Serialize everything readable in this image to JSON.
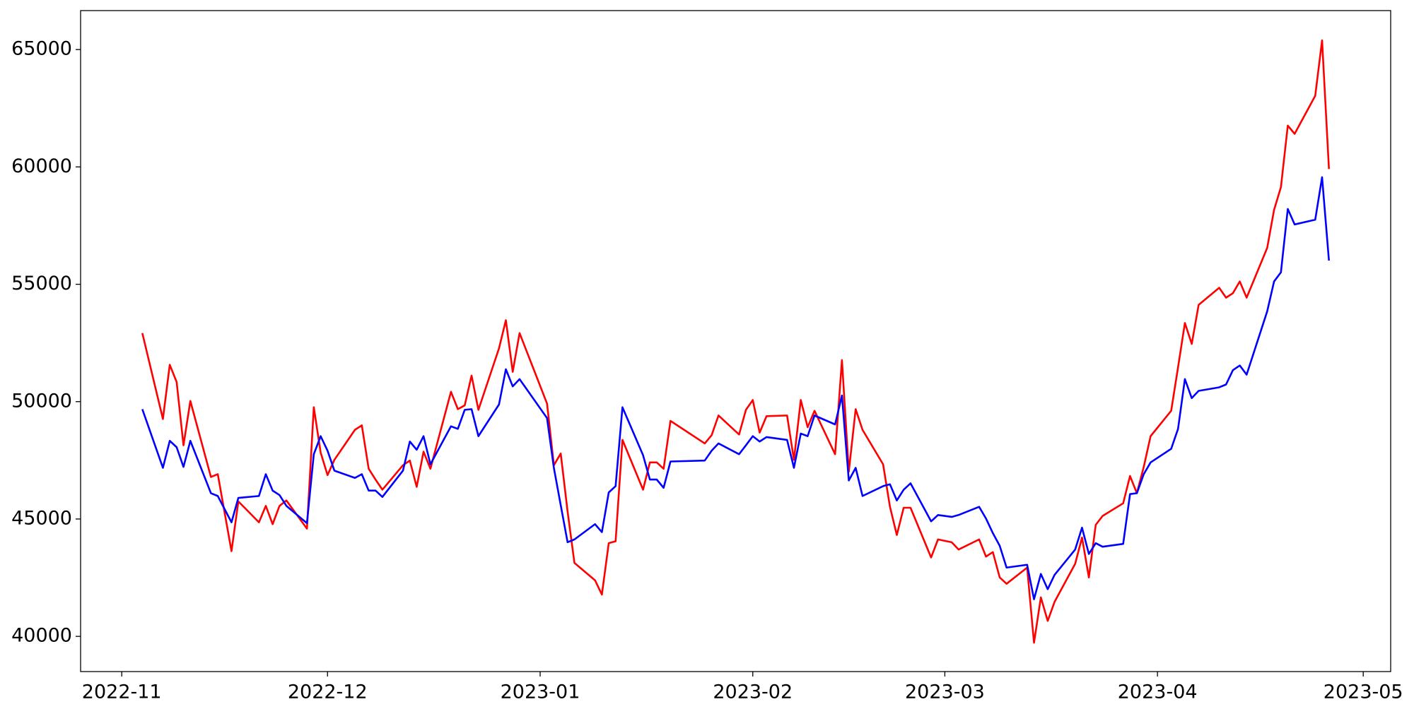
{
  "chart_data": {
    "type": "line",
    "x": [
      "2022-11-04",
      "2022-11-07",
      "2022-11-08",
      "2022-11-09",
      "2022-11-10",
      "2022-11-11",
      "2022-11-14",
      "2022-11-15",
      "2022-11-17",
      "2022-11-18",
      "2022-11-21",
      "2022-11-22",
      "2022-11-23",
      "2022-11-24",
      "2022-11-25",
      "2022-11-28",
      "2022-11-29",
      "2022-11-30",
      "2022-12-01",
      "2022-12-02",
      "2022-12-05",
      "2022-12-06",
      "2022-12-07",
      "2022-12-08",
      "2022-12-09",
      "2022-12-12",
      "2022-12-13",
      "2022-12-14",
      "2022-12-15",
      "2022-12-16",
      "2022-12-19",
      "2022-12-20",
      "2022-12-21",
      "2022-12-22",
      "2022-12-23",
      "2022-12-26",
      "2022-12-27",
      "2022-12-28",
      "2022-12-29",
      "2023-01-02",
      "2023-01-03",
      "2023-01-04",
      "2023-01-05",
      "2023-01-06",
      "2023-01-09",
      "2023-01-10",
      "2023-01-11",
      "2023-01-12",
      "2023-01-13",
      "2023-01-16",
      "2023-01-17",
      "2023-01-18",
      "2023-01-19",
      "2023-01-20",
      "2023-01-25",
      "2023-01-26",
      "2023-01-27",
      "2023-01-30",
      "2023-01-31",
      "2023-02-01",
      "2023-02-02",
      "2023-02-03",
      "2023-02-06",
      "2023-02-07",
      "2023-02-08",
      "2023-02-09",
      "2023-02-10",
      "2023-02-13",
      "2023-02-14",
      "2023-02-15",
      "2023-02-16",
      "2023-02-17",
      "2023-02-20",
      "2023-02-21",
      "2023-02-22",
      "2023-02-23",
      "2023-02-24",
      "2023-02-27",
      "2023-02-28",
      "2023-03-02",
      "2023-03-03",
      "2023-03-06",
      "2023-03-07",
      "2023-03-08",
      "2023-03-09",
      "2023-03-10",
      "2023-03-13",
      "2023-03-14",
      "2023-03-15",
      "2023-03-16",
      "2023-03-17",
      "2023-03-20",
      "2023-03-21",
      "2023-03-22",
      "2023-03-23",
      "2023-03-24",
      "2023-03-27",
      "2023-03-28",
      "2023-03-29",
      "2023-03-30",
      "2023-03-31",
      "2023-04-03",
      "2023-04-04",
      "2023-04-05",
      "2023-04-06",
      "2023-04-07",
      "2023-04-10",
      "2023-04-11",
      "2023-04-12",
      "2023-04-13",
      "2023-04-14",
      "2023-04-17",
      "2023-04-18",
      "2023-04-19",
      "2023-04-20",
      "2023-04-21",
      "2023-04-24",
      "2023-04-25",
      "2023-04-26"
    ],
    "series": [
      {
        "color": "#ff0000",
        "values": [
          52920,
          49260,
          51570,
          50840,
          48140,
          50030,
          46790,
          46910,
          43630,
          45750,
          44860,
          45560,
          44780,
          45560,
          45790,
          44590,
          49760,
          47830,
          46870,
          47520,
          48800,
          48990,
          47140,
          46680,
          46250,
          47290,
          47490,
          46370,
          47870,
          47140,
          50420,
          49680,
          49840,
          51110,
          49650,
          52270,
          53470,
          51270,
          52920,
          49920,
          47290,
          47790,
          45320,
          43130,
          42390,
          41780,
          43970,
          44050,
          48370,
          46250,
          47410,
          47410,
          47140,
          49180,
          48220,
          48570,
          49410,
          48600,
          49650,
          50070,
          48680,
          49380,
          49410,
          47520,
          50070,
          48910,
          49610,
          47760,
          51770,
          47020,
          49680,
          48800,
          47330,
          45520,
          44320,
          45480,
          45480,
          43360,
          44130,
          44010,
          43700,
          44130,
          43400,
          43590,
          42510,
          42240,
          42930,
          39730,
          41660,
          40660,
          41470,
          43090,
          44210,
          42510,
          44750,
          45130,
          45670,
          46830,
          46100,
          47220,
          48530,
          49610,
          51460,
          53350,
          52460,
          54120,
          54850,
          54430,
          54620,
          55120,
          54430,
          56550,
          58170,
          59140,
          61760,
          61410,
          63030,
          65390,
          59910
        ]
      },
      {
        "color": "#0000ff",
        "values": [
          49680,
          47180,
          48330,
          48060,
          47220,
          48330,
          46100,
          45980,
          44860,
          45900,
          45980,
          46910,
          46210,
          46020,
          45560,
          44820,
          47760,
          48530,
          47910,
          47060,
          46750,
          46910,
          46210,
          46210,
          45940,
          47060,
          48300,
          47950,
          48530,
          47330,
          48950,
          48840,
          49650,
          49680,
          48530,
          49880,
          51380,
          50650,
          50960,
          49300,
          47180,
          45590,
          44010,
          44130,
          44780,
          44440,
          46130,
          46400,
          49760,
          47720,
          46680,
          46680,
          46330,
          47450,
          47490,
          47910,
          48220,
          47760,
          48140,
          48530,
          48300,
          48490,
          48370,
          47180,
          48640,
          48530,
          49410,
          49030,
          50260,
          46640,
          47180,
          45980,
          46400,
          46480,
          45790,
          46250,
          46520,
          44900,
          45170,
          45090,
          45170,
          45520,
          45020,
          44400,
          43860,
          42930,
          43050,
          41580,
          42660,
          42010,
          42620,
          43700,
          44630,
          43510,
          43970,
          43820,
          43940,
          46060,
          46100,
          46910,
          47410,
          47990,
          48840,
          50960,
          50150,
          50460,
          50610,
          50730,
          51340,
          51540,
          51150,
          53850,
          55120,
          55510,
          58210,
          57550,
          57750,
          59560,
          56010
        ]
      }
    ],
    "xlim": [
      "2022-10-26",
      "2023-05-05"
    ],
    "xticks": [
      {
        "value": "2022-11-01",
        "label": "2022-11"
      },
      {
        "value": "2022-12-01",
        "label": "2022-12"
      },
      {
        "value": "2023-01-01",
        "label": "2023-01"
      },
      {
        "value": "2023-02-01",
        "label": "2023-02"
      },
      {
        "value": "2023-03-01",
        "label": "2023-03"
      },
      {
        "value": "2023-04-01",
        "label": "2023-04"
      },
      {
        "value": "2023-05-01",
        "label": "2023-05"
      }
    ],
    "ylim": [
      38500,
      66660
    ],
    "yticks": [
      40000,
      45000,
      50000,
      55000,
      60000,
      65000
    ],
    "grid": false
  }
}
